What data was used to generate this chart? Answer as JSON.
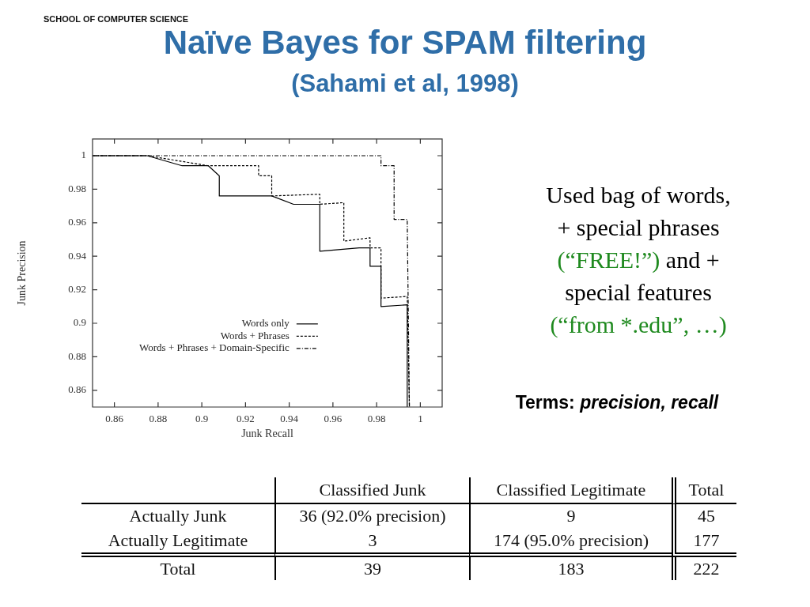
{
  "chart_data": {
    "type": "line",
    "title": "Naïve Bayes for SPAM filtering",
    "subtitle": "(Sahami et al, 1998)",
    "xlabel": "Junk Recall",
    "ylabel": "Junk Precision",
    "xlim": [
      0.85,
      1.01
    ],
    "ylim": [
      0.85,
      1.01
    ],
    "xticks": [
      0.86,
      0.88,
      0.9,
      0.92,
      0.94,
      0.96,
      0.98,
      1
    ],
    "yticks": [
      0.86,
      0.88,
      0.9,
      0.92,
      0.94,
      0.96,
      0.98,
      1
    ],
    "legend": "left",
    "series": [
      {
        "name": "Words only",
        "color": "#000000",
        "line_style": "solid",
        "x": [
          0.85,
          0.875,
          0.891,
          0.903,
          0.908,
          0.908,
          0.932,
          0.942,
          0.95,
          0.954,
          0.954,
          0.972,
          0.977,
          0.977,
          0.982,
          0.982,
          0.994,
          0.994
        ],
        "values": [
          1,
          1,
          0.994,
          0.994,
          0.988,
          0.976,
          0.976,
          0.971,
          0.971,
          0.971,
          0.943,
          0.945,
          0.945,
          0.934,
          0.934,
          0.91,
          0.911,
          0.85
        ]
      },
      {
        "name": "Words + Phrases",
        "color": "#000000",
        "line_style": "dashed",
        "x": [
          0.85,
          0.875,
          0.903,
          0.926,
          0.926,
          0.932,
          0.932,
          0.954,
          0.954,
          0.965,
          0.965,
          0.977,
          0.977,
          0.982,
          0.982,
          0.994,
          0.995
        ],
        "values": [
          1,
          1,
          0.994,
          0.994,
          0.988,
          0.988,
          0.976,
          0.977,
          0.971,
          0.972,
          0.949,
          0.951,
          0.945,
          0.945,
          0.915,
          0.916,
          0.85
        ]
      },
      {
        "name": "Words + Phrases + Domain-Specific",
        "color": "#000000",
        "line_style": "dashdot",
        "x": [
          0.85,
          0.982,
          0.982,
          0.988,
          0.988,
          0.994,
          0.995
        ],
        "values": [
          1,
          1,
          0.994,
          0.994,
          0.962,
          0.962,
          0.85
        ]
      }
    ],
    "annotations": [
      "SCHOOL OF COMPUTER SCIENCE",
      "Used bag of words,",
      "+ special phrases",
      "(“FREE!”)",
      "and +",
      "special features",
      "(“from *.edu”, …)",
      "Terms:",
      "precision, recall",
      "Classified Junk",
      "Classified Legitimate",
      "Total",
      "Actually Junk",
      "36 (92.0% precision)",
      "9",
      "45",
      "Actually Legitimate",
      "3",
      "174 (95.0% precision)",
      "177",
      "Total",
      "39",
      "183",
      "222"
    ]
  }
}
